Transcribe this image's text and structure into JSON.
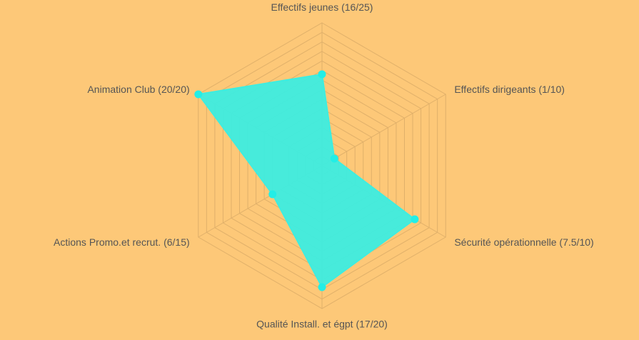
{
  "chart_data": {
    "type": "radar",
    "title": "",
    "grid": true,
    "legend": "none",
    "axes": [
      {
        "label": "Effectifs jeunes (16/25)",
        "value": 16,
        "max": 25
      },
      {
        "label": "Effectifs dirigeants (1/10)",
        "value": 1,
        "max": 10
      },
      {
        "label": "Sécurité opérationnelle (7.5/10)",
        "value": 7.5,
        "max": 10
      },
      {
        "label": "Qualité Install. et égpt (17/20)",
        "value": 17,
        "max": 20
      },
      {
        "label": "Actions Promo.et recrut. (6/15)",
        "value": 6,
        "max": 15
      },
      {
        "label": "Animation Club (20/20)",
        "value": 20,
        "max": 20
      }
    ],
    "colors": {
      "background": "#FDC878",
      "fill": "#3DEDE0",
      "point": "#22EEE6",
      "grid": "#E0B06A",
      "label": "#555555"
    }
  }
}
